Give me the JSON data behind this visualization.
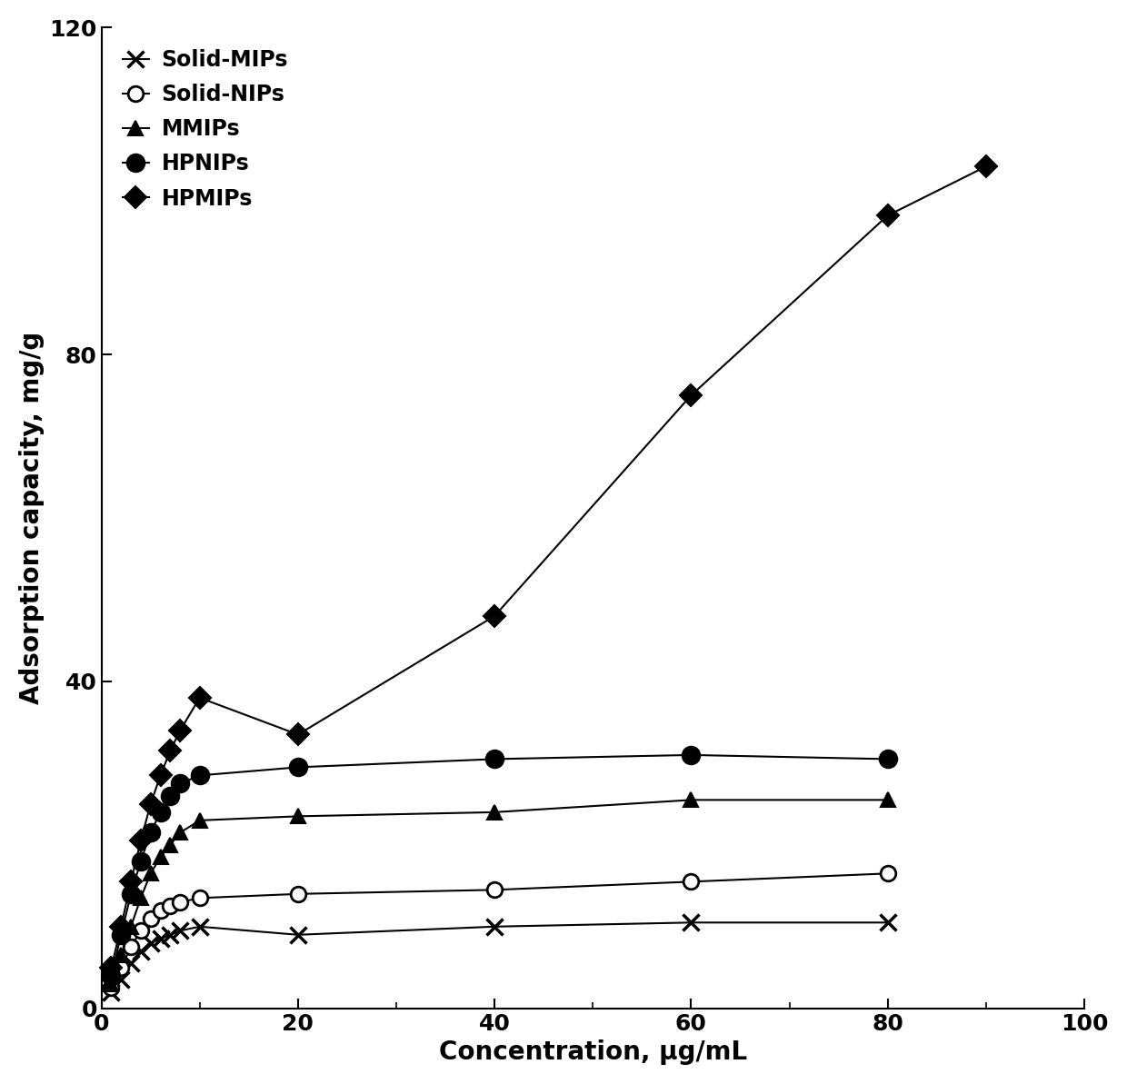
{
  "series": {
    "Solid-MIPs": {
      "x": [
        1,
        2,
        3,
        4,
        5,
        6,
        7,
        8,
        10,
        20,
        40,
        60,
        80
      ],
      "y": [
        2.0,
        3.5,
        5.5,
        7.0,
        8.0,
        8.5,
        9.0,
        9.5,
        10.0,
        9.0,
        10.0,
        10.5,
        10.5
      ],
      "marker": "x",
      "markersize": 13,
      "linewidth": 1.5,
      "color": "#000000",
      "zorder": 4,
      "mew": 2.5,
      "markerfacecolor": "none"
    },
    "Solid-NIPs": {
      "x": [
        1,
        2,
        3,
        4,
        5,
        6,
        7,
        8,
        10,
        20,
        40,
        60,
        80
      ],
      "y": [
        2.5,
        5.0,
        7.5,
        9.5,
        11.0,
        12.0,
        12.5,
        13.0,
        13.5,
        14.0,
        14.5,
        15.5,
        16.5
      ],
      "marker": "o",
      "markersize": 12,
      "linewidth": 1.5,
      "color": "#000000",
      "zorder": 4,
      "mew": 2.0,
      "markerfacecolor": "white"
    },
    "MMIPs": {
      "x": [
        1,
        2,
        3,
        4,
        5,
        6,
        7,
        8,
        10,
        20,
        40,
        60,
        80
      ],
      "y": [
        3.0,
        6.5,
        10.0,
        13.5,
        16.5,
        18.5,
        20.0,
        21.5,
        23.0,
        23.5,
        24.0,
        25.5,
        25.5
      ],
      "marker": "^",
      "markersize": 12,
      "linewidth": 1.5,
      "color": "#000000",
      "zorder": 4,
      "mew": 1.5,
      "markerfacecolor": "#000000"
    },
    "HPNIPs": {
      "x": [
        1,
        2,
        3,
        4,
        5,
        6,
        7,
        8,
        10,
        20,
        40,
        60,
        80
      ],
      "y": [
        4.0,
        9.0,
        14.0,
        18.0,
        21.5,
        24.0,
        26.0,
        27.5,
        28.5,
        29.5,
        30.5,
        31.0,
        30.5
      ],
      "marker": "o",
      "markersize": 14,
      "linewidth": 1.5,
      "color": "#000000",
      "zorder": 4,
      "mew": 1.5,
      "markerfacecolor": "#000000"
    },
    "HPMIPs": {
      "x": [
        1,
        2,
        3,
        4,
        5,
        6,
        7,
        8,
        10,
        20,
        40,
        60,
        80,
        90
      ],
      "y": [
        5.0,
        10.0,
        15.5,
        20.5,
        25.0,
        28.5,
        31.5,
        34.0,
        38.0,
        33.5,
        48.0,
        75.0,
        97.0,
        103.0
      ],
      "marker": "D",
      "markersize": 12,
      "linewidth": 1.5,
      "color": "#000000",
      "zorder": 5,
      "mew": 1.5,
      "markerfacecolor": "#000000"
    }
  },
  "xlabel": "Concentration, μg/mL",
  "ylabel": "Adsorption capacity, mg/g",
  "xlim": [
    0,
    100
  ],
  "ylim": [
    0,
    120
  ],
  "xticks": [
    0,
    20,
    40,
    60,
    80,
    100
  ],
  "yticks": [
    0,
    40,
    80,
    120
  ],
  "label_fontsize": 20,
  "tick_fontsize": 18,
  "legend_fontsize": 17,
  "background_color": "#ffffff",
  "legend_order": [
    "Solid-MIPs",
    "Solid-NIPs",
    "MMIPs",
    "HPNIPs",
    "HPMIPs"
  ]
}
